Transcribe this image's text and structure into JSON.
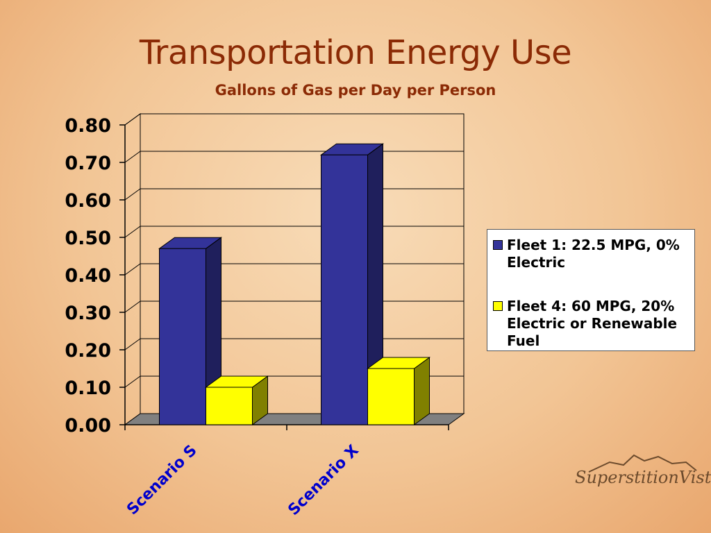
{
  "title": "Transportation Energy Use",
  "subtitle": "Gallons of Gas per Day per Person",
  "logo": {
    "text": "SuperstitionVistas"
  },
  "colors": {
    "series1": "#333399",
    "series1_side": "#1f1f5c",
    "series2": "#ffff00",
    "series2_side": "#808000",
    "floor": "#808080",
    "title": "#8b2a05",
    "category_label": "#0000cc"
  },
  "chart_data": {
    "type": "bar",
    "three_d": true,
    "categories": [
      "Scenario S",
      "Scenario X"
    ],
    "series": [
      {
        "name": "Fleet 1: 22.5 MPG, 0% Electric",
        "values": [
          0.47,
          0.72
        ]
      },
      {
        "name": "Fleet 4: 60 MPG, 20% Electric or Renewable Fuel",
        "values": [
          0.1,
          0.15
        ]
      }
    ],
    "title": "Transportation Energy Use",
    "subtitle": "Gallons of Gas per Day per Person",
    "ylim": [
      0,
      0.8
    ],
    "yticks": [
      "0.00",
      "0.10",
      "0.20",
      "0.30",
      "0.40",
      "0.50",
      "0.60",
      "0.70",
      "0.80"
    ],
    "grid": true,
    "legend_position": "right"
  }
}
